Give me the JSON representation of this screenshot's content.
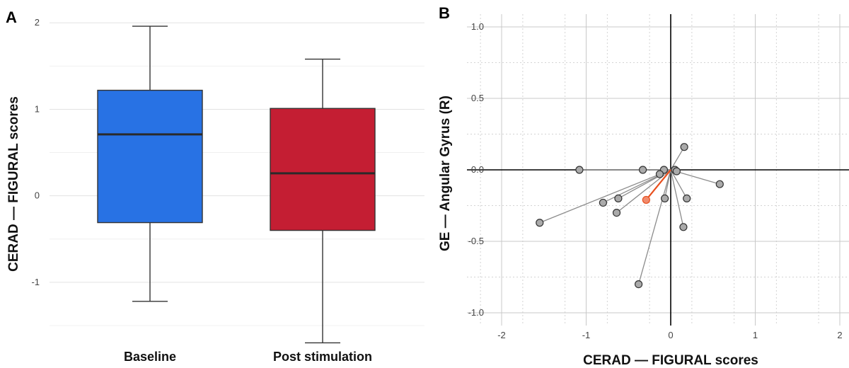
{
  "chart_data": [
    {
      "type": "box",
      "panel_label": "A",
      "ylabel": "CERAD — FIGURAL scores",
      "xlabel": "",
      "ylim": [
        -1.5,
        2.1
      ],
      "yticks": [
        -1,
        0,
        1,
        2
      ],
      "ytick_labels": [
        "-1",
        "0",
        "1",
        "2"
      ],
      "grid": true,
      "categories": [
        "Baseline",
        "Post stimulation"
      ],
      "boxes": [
        {
          "category": "Baseline",
          "whisker_low": -1.22,
          "q1": -0.31,
          "median": 0.71,
          "q3": 1.22,
          "whisker_high": 1.96,
          "color": "#2872E4"
        },
        {
          "category": "Post stimulation",
          "whisker_low": -1.7,
          "q1": -0.4,
          "median": 0.26,
          "q3": 1.01,
          "whisker_high": 1.58,
          "color": "#C41E33"
        }
      ]
    },
    {
      "type": "scatter",
      "panel_label": "B",
      "xlabel": "CERAD — FIGURAL scores",
      "ylabel": "GE — Angular Gyrus (R)",
      "xlim": [
        -2.2,
        2.2
      ],
      "ylim": [
        -1.05,
        1.1
      ],
      "xticks": [
        -2,
        -1,
        0,
        1,
        2
      ],
      "xtick_labels": [
        "-2",
        "-1",
        "0",
        "1",
        "2"
      ],
      "yticks": [
        -1.0,
        -0.5,
        0.0,
        0.5,
        1.0
      ],
      "ytick_labels": [
        "-1.0",
        "-0.5",
        "0.0",
        "0.5",
        "1.0"
      ],
      "grid": true,
      "origin_lines": true,
      "points": [
        {
          "x": -1.08,
          "y": 0.0
        },
        {
          "x": -0.33,
          "y": 0.0
        },
        {
          "x": -0.08,
          "y": 0.0
        },
        {
          "x": -0.13,
          "y": -0.03
        },
        {
          "x": 0.05,
          "y": 0.0
        },
        {
          "x": 0.07,
          "y": -0.01
        },
        {
          "x": 0.16,
          "y": 0.16
        },
        {
          "x": 0.58,
          "y": -0.1
        },
        {
          "x": 0.19,
          "y": -0.2
        },
        {
          "x": 0.15,
          "y": -0.4
        },
        {
          "x": -0.07,
          "y": -0.2
        },
        {
          "x": -0.62,
          "y": -0.2
        },
        {
          "x": -0.8,
          "y": -0.23
        },
        {
          "x": -0.64,
          "y": -0.3
        },
        {
          "x": -1.55,
          "y": -0.37
        },
        {
          "x": -0.38,
          "y": -0.8
        }
      ],
      "mean_point": {
        "x": -0.29,
        "y": -0.21
      },
      "colors": {
        "point": "#aaaaaa",
        "segment": "#8c8c8c",
        "mean": "#F08B6E",
        "mean_segment": "#E8501E"
      }
    }
  ]
}
